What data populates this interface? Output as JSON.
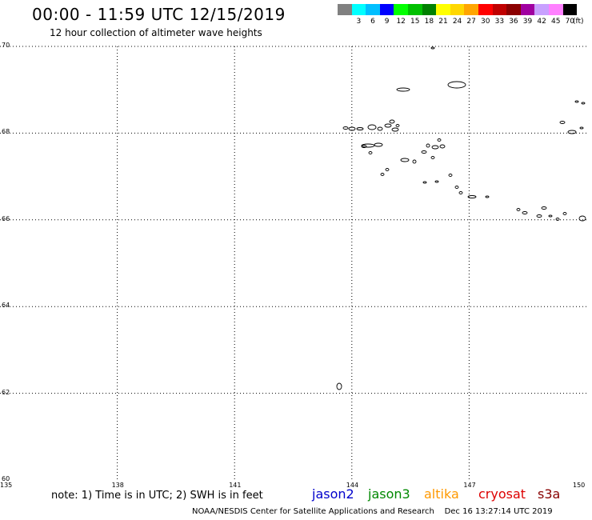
{
  "header": {
    "title": "00:00 - 11:59 UTC 12/15/2019",
    "subtitle": "12 hour collection of altimeter wave heights"
  },
  "scale": {
    "unit": "(ft)",
    "bins": [
      {
        "color": "#808080",
        "label": ""
      },
      {
        "color": "#00ffff",
        "label": "3"
      },
      {
        "color": "#00bfff",
        "label": "6"
      },
      {
        "color": "#0000ff",
        "label": "9"
      },
      {
        "color": "#00ff00",
        "label": "12"
      },
      {
        "color": "#00c000",
        "label": "15"
      },
      {
        "color": "#008000",
        "label": "18"
      },
      {
        "color": "#ffff00",
        "label": "21"
      },
      {
        "color": "#ffd700",
        "label": "24"
      },
      {
        "color": "#ffa500",
        "label": "27"
      },
      {
        "color": "#ff0000",
        "label": "30"
      },
      {
        "color": "#c00000",
        "label": "33"
      },
      {
        "color": "#8b0000",
        "label": "36"
      },
      {
        "color": "#a000a0",
        "label": "39"
      },
      {
        "color": "#c8a0ff",
        "label": "42"
      },
      {
        "color": "#ff80ff",
        "label": "45"
      },
      {
        "color": "#000000",
        "label": "70"
      }
    ]
  },
  "map": {
    "lat_min": 60,
    "lat_max": 70,
    "lon_min": 135,
    "lon_max": 150,
    "lat_ticks": [
      "70",
      "68",
      "66",
      "64",
      "62",
      "60"
    ],
    "lon_ticks": [
      "135",
      "138",
      "141",
      "144",
      "147",
      "150"
    ],
    "grid": true
  },
  "footer": {
    "note": "note: 1) Time is in UTC; 2) SWH is in feet",
    "satellites": [
      {
        "name": "jason2",
        "color": "#0000cc"
      },
      {
        "name": "jason3",
        "color": "#008800"
      },
      {
        "name": "altika",
        "color": "#ff9900"
      },
      {
        "name": "cryosat",
        "color": "#dd0000"
      },
      {
        "name": "s3a",
        "color": "#880000"
      }
    ],
    "credit": "NOAA/NESDIS Center for Satellite Applications and Research",
    "timestamp": "Dec 16 13:27:14 UTC 2019"
  }
}
